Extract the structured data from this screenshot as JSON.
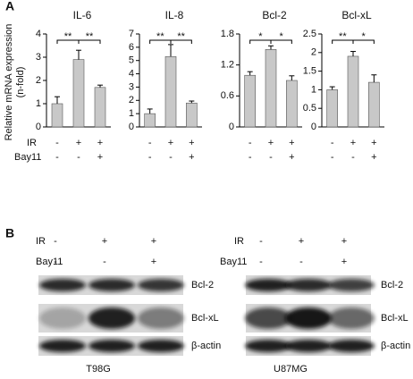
{
  "panel_labels": [
    "A",
    "B"
  ],
  "y_label": [
    "Relative mRNA expression",
    "(n-fold)"
  ],
  "treatments": [
    "IR",
    "Bay11"
  ],
  "chart_data": [
    {
      "type": "bar",
      "title": "IL-6",
      "color": "#c8c8c8",
      "values": [
        1,
        2.9,
        1.7
      ],
      "errors": [
        0.3,
        0.4,
        0.1
      ],
      "signs": [
        [
          "-",
          "+",
          "+"
        ],
        [
          "-",
          "-",
          "+"
        ]
      ],
      "significance": [
        "**",
        "**"
      ],
      "ylim": [
        0,
        4
      ],
      "yticks": [
        0,
        1,
        2,
        3,
        4
      ]
    },
    {
      "type": "bar",
      "title": "IL-8",
      "color": "#c8c8c8",
      "values": [
        1,
        5.3,
        1.8
      ],
      "errors": [
        0.35,
        0.9,
        0.15
      ],
      "signs": [
        [
          "-",
          "+",
          "+"
        ],
        [
          "-",
          "-",
          "+"
        ]
      ],
      "significance": [
        "**",
        "**"
      ],
      "ylim": [
        0,
        7
      ],
      "yticks": [
        0,
        1,
        2,
        3,
        4,
        5,
        6,
        7
      ]
    },
    {
      "type": "bar",
      "title": "Bcl-2",
      "color": "#c8c8c8",
      "values": [
        1.0,
        1.5,
        0.9
      ],
      "errors": [
        0.07,
        0.07,
        0.09
      ],
      "signs": [
        [
          "-",
          "+",
          "+"
        ],
        [
          "-",
          "-",
          "+"
        ]
      ],
      "significance": [
        "*",
        "*"
      ],
      "ylim": [
        0,
        1.8
      ],
      "yticks": [
        0,
        0.6,
        1.2,
        1.8
      ]
    },
    {
      "type": "bar",
      "title": "Bcl-xL",
      "color": "#c8c8c8",
      "values": [
        1.0,
        1.9,
        1.2
      ],
      "errors": [
        0.08,
        0.13,
        0.2
      ],
      "signs": [
        [
          "-",
          "+",
          "+"
        ],
        [
          "-",
          "-",
          "+"
        ]
      ],
      "significance": [
        "**",
        "*"
      ],
      "ylim": [
        0,
        2.5
      ],
      "yticks": [
        0,
        0.5,
        1,
        1.5,
        2,
        2.5
      ]
    }
  ],
  "blots": [
    {
      "cell_line": "T98G",
      "treatments": [
        "IR",
        "Bay11"
      ],
      "signs": [
        [
          "-",
          "+",
          "+"
        ],
        [
          "-",
          "-",
          "+"
        ]
      ],
      "bands": [
        "Bcl-2",
        "Bcl-xL",
        "β-actin"
      ]
    },
    {
      "cell_line": "U87MG",
      "treatments": [
        "IR",
        "Bay11"
      ],
      "signs": [
        [
          "-",
          "+",
          "+"
        ],
        [
          "-",
          "-",
          "+"
        ]
      ],
      "bands": [
        "Bcl-2",
        "Bcl-xL",
        "β-actin"
      ]
    }
  ]
}
